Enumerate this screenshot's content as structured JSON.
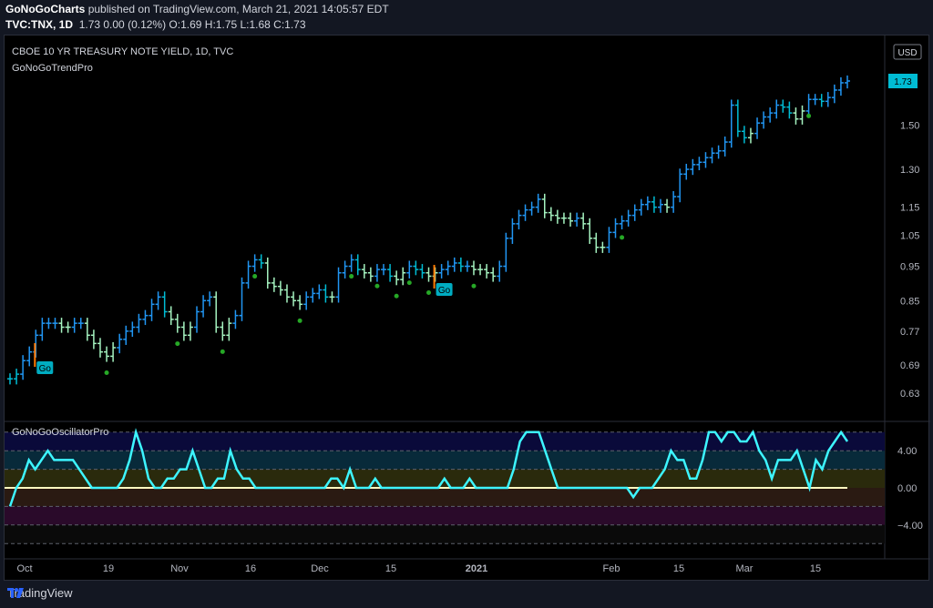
{
  "header": {
    "publisher": "GoNoGoCharts",
    "published_text": "published on TradingView.com, March 21, 2021 14:05:57 EDT",
    "symbol": "TVC:TNX, 1D",
    "quote": "1.73 0.00 (0.12%) O:1.69 H:1.75 L:1.68 C:1.73"
  },
  "pane_main": {
    "title": "CBOE 10 YR TREASURY NOTE YIELD, 1D, TVC",
    "indicator": "GoNoGoTrendPro",
    "currency": "USD",
    "last_price": "1.73",
    "go_label": "Go"
  },
  "pane_osc": {
    "indicator": "GoNoGoOscillatorPro"
  },
  "footer": {
    "brand": "TradingView"
  },
  "colors": {
    "go_strong": "#2196f3",
    "go_weak": "#00bcd4",
    "nogo_weak": "#a5f3c0",
    "osc_line": "#3df5ff",
    "zero_line": "#fff8c0",
    "dot_green": "#26a826",
    "marker_orange": "#ff7a00"
  },
  "chart_data": [
    {
      "type": "candlestick-bars",
      "title": "CBOE 10 YR TREASURY NOTE YIELD, 1D, TVC",
      "y_axis_ticks": [
        0.63,
        0.69,
        0.77,
        0.85,
        0.95,
        1.05,
        1.15,
        1.3,
        1.5,
        1.73
      ],
      "x_axis_ticks": [
        "Oct",
        "19",
        "Nov",
        "16",
        "Dec",
        "15",
        "2021",
        "Feb",
        "15",
        "Mar",
        "15"
      ],
      "scale": "log",
      "series": [
        {
          "values": [
            0.66,
            0.67,
            0.7,
            0.72,
            0.76,
            0.79,
            0.79,
            0.79,
            0.78,
            0.78,
            0.79,
            0.79,
            0.76,
            0.74,
            0.72,
            0.71,
            0.73,
            0.75,
            0.77,
            0.78,
            0.8,
            0.81,
            0.84,
            0.86,
            0.82,
            0.8,
            0.78,
            0.76,
            0.78,
            0.82,
            0.85,
            0.86,
            0.78,
            0.76,
            0.79,
            0.81,
            0.9,
            0.95,
            0.97,
            0.96,
            0.9,
            0.89,
            0.88,
            0.86,
            0.85,
            0.84,
            0.86,
            0.87,
            0.88,
            0.86,
            0.86,
            0.93,
            0.95,
            0.97,
            0.94,
            0.93,
            0.92,
            0.94,
            0.94,
            0.92,
            0.91,
            0.93,
            0.95,
            0.94,
            0.93,
            0.92,
            0.93,
            0.94,
            0.95,
            0.96,
            0.95,
            0.95,
            0.94,
            0.94,
            0.93,
            0.92,
            0.95,
            1.04,
            1.09,
            1.12,
            1.14,
            1.15,
            1.18,
            1.13,
            1.12,
            1.11,
            1.11,
            1.1,
            1.11,
            1.09,
            1.04,
            1.01,
            1.01,
            1.06,
            1.09,
            1.1,
            1.12,
            1.14,
            1.16,
            1.17,
            1.15,
            1.16,
            1.15,
            1.19,
            1.28,
            1.3,
            1.32,
            1.33,
            1.35,
            1.37,
            1.38,
            1.42,
            1.6,
            1.47,
            1.44,
            1.46,
            1.51,
            1.54,
            1.56,
            1.6,
            1.59,
            1.56,
            1.53,
            1.57,
            1.63,
            1.63,
            1.62,
            1.64,
            1.68,
            1.72,
            1.73
          ]
        }
      ]
    },
    {
      "type": "line",
      "title": "GoNoGoOscillatorPro",
      "y_axis_ticks": [
        4.0,
        0.0,
        -4.0
      ],
      "ylim": [
        -6,
        6
      ],
      "series": [
        {
          "values": [
            -2,
            0,
            1,
            3,
            2,
            3,
            4,
            3,
            3,
            3,
            3,
            2,
            1,
            0,
            0,
            0,
            0,
            0,
            1,
            3,
            6,
            4,
            1,
            0,
            0,
            1,
            1,
            2,
            2,
            4,
            2,
            0,
            0,
            1,
            1,
            4,
            2,
            1,
            1,
            0,
            0,
            0,
            0,
            0,
            0,
            0,
            0,
            0,
            0,
            0,
            0,
            1,
            1,
            0,
            2,
            0,
            0,
            0,
            1,
            0,
            0,
            0,
            0,
            0,
            0,
            0,
            0,
            0,
            0,
            1,
            0,
            0,
            0,
            1,
            0,
            0,
            0,
            0,
            0,
            0,
            2,
            5,
            6,
            6,
            6,
            4,
            2,
            0,
            0,
            0,
            0,
            0,
            0,
            0,
            0,
            0,
            0,
            0,
            0,
            -1,
            0,
            0,
            0,
            1,
            2,
            4,
            3,
            3,
            1,
            1,
            3,
            6,
            6,
            5,
            6,
            6,
            5,
            5,
            6,
            4,
            3,
            1,
            3,
            3,
            3,
            4,
            2,
            0,
            3,
            2,
            4,
            5,
            6,
            5
          ]
        }
      ]
    }
  ]
}
